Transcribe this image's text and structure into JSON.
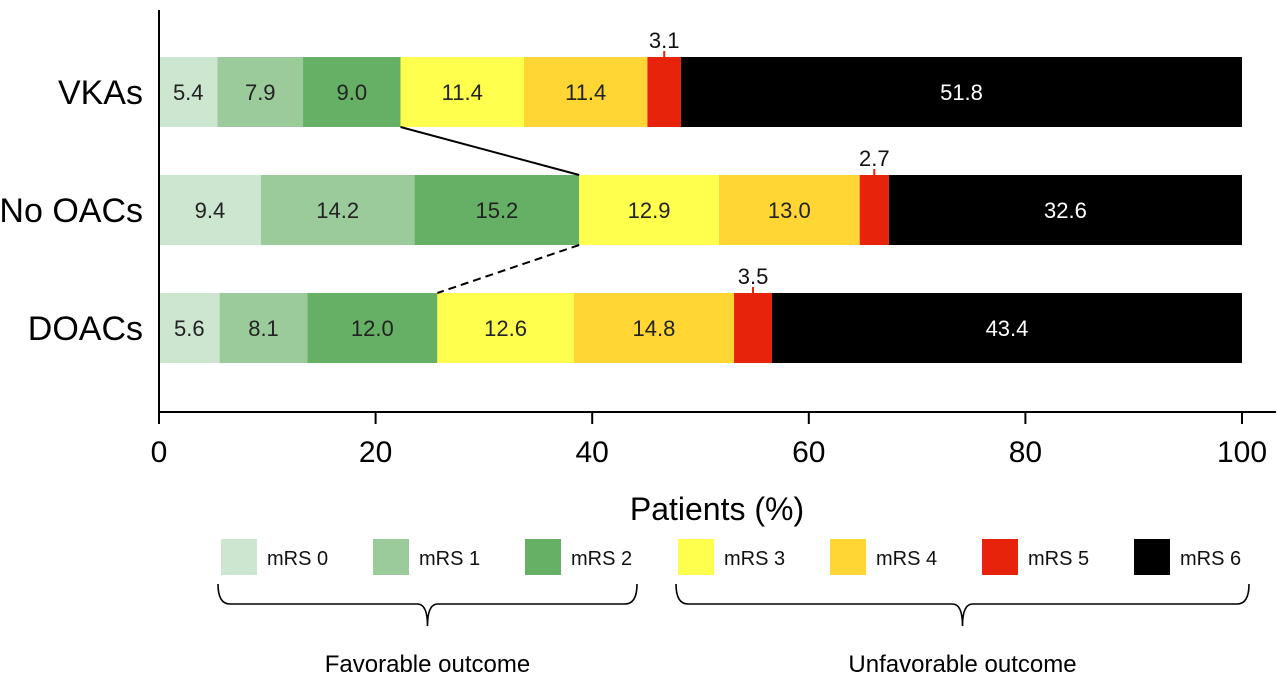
{
  "chart_data": {
    "type": "bar",
    "orientation": "horizontal",
    "stacked": true,
    "categories": [
      "VKAs",
      "No OACs",
      "DOACs"
    ],
    "series": [
      {
        "name": "mRS 0",
        "values": [
          5.4,
          9.4,
          5.6
        ]
      },
      {
        "name": "mRS 1",
        "values": [
          7.9,
          14.2,
          8.1
        ]
      },
      {
        "name": "mRS 2",
        "values": [
          9.0,
          15.2,
          12.0
        ]
      },
      {
        "name": "mRS 3",
        "values": [
          11.4,
          12.9,
          12.6
        ]
      },
      {
        "name": "mRS 4",
        "values": [
          11.4,
          13.0,
          14.8
        ]
      },
      {
        "name": "mRS 5",
        "values": [
          3.1,
          2.7,
          3.5
        ]
      },
      {
        "name": "mRS 6",
        "values": [
          51.8,
          32.6,
          43.4
        ]
      }
    ],
    "data_labels": [
      [
        "5.4",
        "7.9",
        "9.0",
        "11.4",
        "11.4",
        "3.1",
        "51.8"
      ],
      [
        "9.4",
        "14.2",
        "15.2",
        "12.9",
        "13.0",
        "2.7",
        "32.6"
      ],
      [
        "5.6",
        "8.1",
        "12.0",
        "12.6",
        "14.8",
        "3.5",
        "43.4"
      ]
    ],
    "xlabel": "Patients (%)",
    "ylabel": "",
    "xlim": [
      0,
      100
    ],
    "xticks": [
      0,
      20,
      40,
      60,
      80,
      100
    ],
    "grid": false,
    "legend_position": "bottom",
    "connectors": [
      {
        "between": [
          "VKAs",
          "No OACs"
        ],
        "at_cumulative": "mRS 2",
        "style": "solid"
      },
      {
        "between": [
          "No OACs",
          "DOACs"
        ],
        "at_cumulative": "mRS 2",
        "style": "dashed"
      }
    ],
    "outcome_groups": [
      {
        "label": "Favorable outcome",
        "series": [
          "mRS 0",
          "mRS 1",
          "mRS 2"
        ]
      },
      {
        "label": "Unfavorable outcome",
        "series": [
          "mRS 3",
          "mRS 4",
          "mRS 5",
          "mRS 6"
        ]
      }
    ],
    "colors": [
      "#cde6cf",
      "#9bcb9b",
      "#66b066",
      "#ffff4d",
      "#ffd633",
      "#e8230b",
      "#000000"
    ],
    "label_colors": [
      "#222222",
      "#222222",
      "#222222",
      "#222222",
      "#222222",
      "#222222",
      "#ffffff"
    ]
  }
}
